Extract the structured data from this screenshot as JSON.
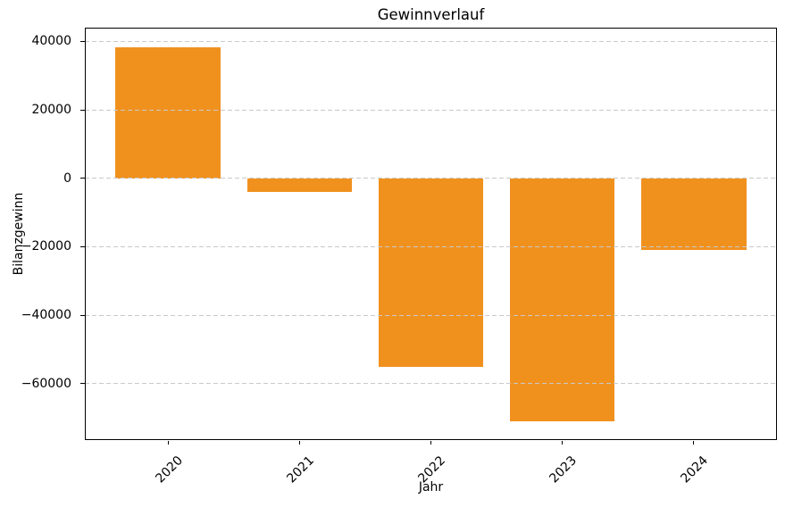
{
  "figure": {
    "background": "#ffffff",
    "text_color": "#000000",
    "gridline_color": "#c9c9c9"
  },
  "chart_data": {
    "type": "bar",
    "title": "Gewinnverlauf",
    "xlabel": "Jahr",
    "ylabel": "Bilanzgewinn",
    "categories": [
      "2020",
      "2021",
      "2022",
      "2023",
      "2024"
    ],
    "values": [
      38200,
      -4000,
      -55000,
      -71000,
      -21000
    ],
    "bar_color": "#F0911E",
    "ylim": [
      -76500,
      44000
    ],
    "xlim": [
      -0.634,
      4.634
    ],
    "bar_width_units": 0.8,
    "yticks": [
      40000,
      20000,
      0,
      -20000,
      -40000,
      -60000
    ],
    "ytick_labels": [
      "40000",
      "20000",
      "0",
      "−20000",
      "−40000",
      "−60000"
    ],
    "xtick_rotation_deg": 45,
    "grid": "horizontal-dashed",
    "grid_above_bars": true,
    "legend": "none"
  }
}
